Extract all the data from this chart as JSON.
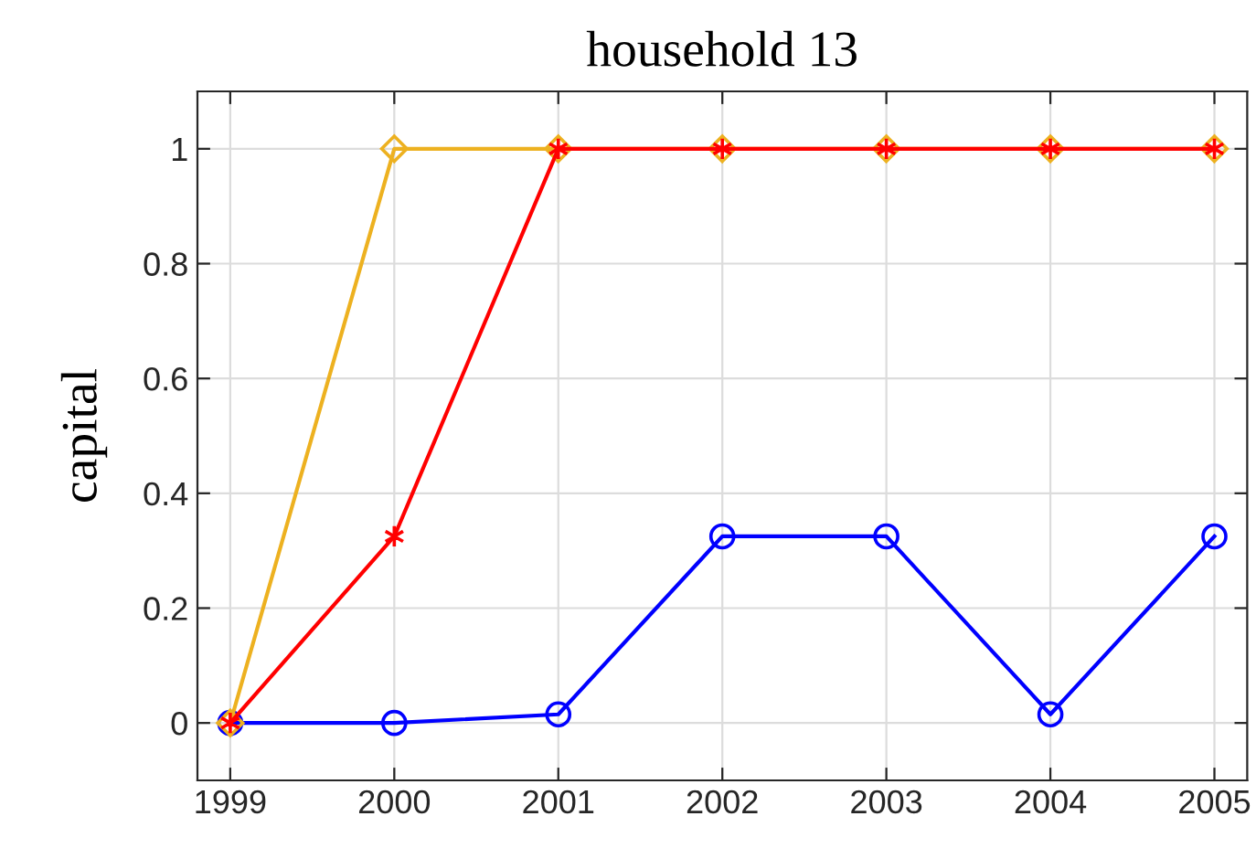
{
  "chart_data": {
    "type": "line",
    "title": "household 13",
    "ylabel": "capital",
    "x": [
      1999,
      2000,
      2001,
      2002,
      2003,
      2004,
      2005
    ],
    "series": [
      {
        "color": "#0000ff",
        "marker": "circle",
        "values": [
          0,
          0,
          0.015,
          0.325,
          0.325,
          0.015,
          0.325
        ]
      },
      {
        "color": "#edb120",
        "marker": "diamond",
        "values": [
          0,
          1,
          1,
          1,
          1,
          1,
          1
        ]
      },
      {
        "color": "#ff0000",
        "marker": "cross",
        "values": [
          0,
          0.325,
          1,
          1,
          1,
          1,
          1
        ]
      }
    ],
    "xlim": [
      1998.8,
      2005.2
    ],
    "xticks": [
      1999,
      2000,
      2001,
      2002,
      2003,
      2004,
      2005
    ],
    "ylim": [
      -0.1,
      1.1
    ],
    "yticks": [
      0,
      0.2,
      0.4,
      0.6,
      0.8,
      1
    ],
    "grid": true
  }
}
